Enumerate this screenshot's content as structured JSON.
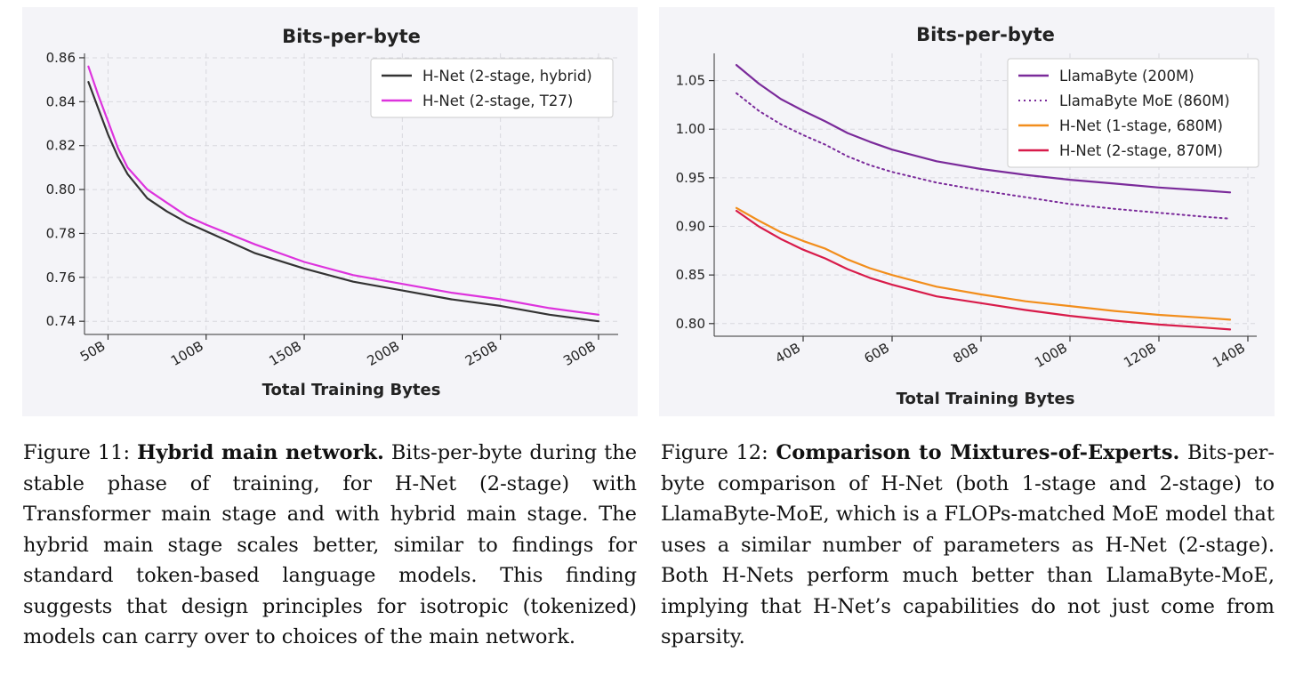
{
  "chart_data": [
    {
      "type": "line",
      "title": "Bits-per-byte",
      "xlabel": "Total Training Bytes",
      "ylabel": "",
      "xlim": [
        38,
        310
      ],
      "ylim": [
        0.734,
        0.862
      ],
      "xticks": [
        50,
        100,
        150,
        200,
        250,
        300
      ],
      "xtick_labels": [
        "50B",
        "100B",
        "150B",
        "200B",
        "250B",
        "300B"
      ],
      "yticks": [
        0.74,
        0.76,
        0.78,
        0.8,
        0.82,
        0.84,
        0.86
      ],
      "ytick_labels": [
        "0.74",
        "0.76",
        "0.78",
        "0.80",
        "0.82",
        "0.84",
        "0.86"
      ],
      "grid": true,
      "legend_position": "top-right",
      "series": [
        {
          "name": "H-Net (2-stage, hybrid)",
          "color": "#333333",
          "dash": "solid",
          "x": [
            40,
            45,
            50,
            55,
            60,
            70,
            80,
            90,
            100,
            125,
            150,
            175,
            200,
            225,
            250,
            275,
            300
          ],
          "y": [
            0.849,
            0.837,
            0.825,
            0.815,
            0.807,
            0.796,
            0.79,
            0.785,
            0.781,
            0.771,
            0.764,
            0.758,
            0.754,
            0.75,
            0.747,
            0.743,
            0.74
          ]
        },
        {
          "name": "H-Net (2-stage, T27)",
          "color": "#dd33dd",
          "dash": "solid",
          "x": [
            40,
            45,
            50,
            55,
            60,
            70,
            80,
            90,
            100,
            125,
            150,
            175,
            200,
            225,
            250,
            275,
            300
          ],
          "y": [
            0.856,
            0.843,
            0.831,
            0.819,
            0.81,
            0.8,
            0.794,
            0.788,
            0.784,
            0.775,
            0.767,
            0.761,
            0.757,
            0.753,
            0.75,
            0.746,
            0.743
          ]
        }
      ]
    },
    {
      "type": "line",
      "title": "Bits-per-byte",
      "xlabel": "Total Training Bytes",
      "ylabel": "",
      "xlim": [
        20,
        142
      ],
      "ylim": [
        0.787,
        1.078
      ],
      "xticks": [
        40,
        60,
        80,
        100,
        120,
        140
      ],
      "xtick_labels": [
        "40B",
        "60B",
        "80B",
        "100B",
        "120B",
        "140B"
      ],
      "yticks": [
        0.8,
        0.85,
        0.9,
        0.95,
        1.0,
        1.05
      ],
      "ytick_labels": [
        "0.80",
        "0.85",
        "0.90",
        "0.95",
        "1.00",
        "1.05"
      ],
      "grid": true,
      "legend_position": "top-right",
      "series": [
        {
          "name": "LlamaByte (200M)",
          "color": "#7a2a9a",
          "dash": "solid",
          "x": [
            25,
            30,
            35,
            40,
            45,
            50,
            55,
            60,
            70,
            80,
            90,
            100,
            110,
            120,
            130,
            136
          ],
          "y": [
            1.066,
            1.047,
            1.031,
            1.019,
            1.008,
            0.996,
            0.987,
            0.979,
            0.967,
            0.959,
            0.953,
            0.948,
            0.944,
            0.94,
            0.937,
            0.935
          ]
        },
        {
          "name": "LlamaByte MoE (860M)",
          "color": "#7a2a9a",
          "dash": "dotted",
          "x": [
            25,
            30,
            35,
            40,
            45,
            50,
            55,
            60,
            70,
            80,
            90,
            100,
            110,
            120,
            130,
            136
          ],
          "y": [
            1.037,
            1.019,
            1.005,
            0.994,
            0.984,
            0.972,
            0.963,
            0.956,
            0.945,
            0.937,
            0.93,
            0.923,
            0.918,
            0.914,
            0.91,
            0.908
          ]
        },
        {
          "name": "H-Net (1-stage, 680M)",
          "color": "#f28e1c",
          "dash": "solid",
          "x": [
            25,
            30,
            35,
            40,
            45,
            50,
            55,
            60,
            70,
            80,
            90,
            100,
            110,
            120,
            130,
            136
          ],
          "y": [
            0.919,
            0.906,
            0.894,
            0.885,
            0.877,
            0.866,
            0.857,
            0.85,
            0.838,
            0.83,
            0.823,
            0.818,
            0.813,
            0.809,
            0.806,
            0.804
          ]
        },
        {
          "name": "H-Net (2-stage, 870M)",
          "color": "#d81b4a",
          "dash": "solid",
          "x": [
            25,
            30,
            35,
            40,
            45,
            50,
            55,
            60,
            70,
            80,
            90,
            100,
            110,
            120,
            130,
            136
          ],
          "y": [
            0.916,
            0.9,
            0.887,
            0.876,
            0.867,
            0.856,
            0.847,
            0.84,
            0.828,
            0.821,
            0.814,
            0.808,
            0.803,
            0.799,
            0.796,
            0.794
          ]
        }
      ]
    }
  ],
  "captions": [
    {
      "label": "Figure 11:",
      "title": "Hybrid main network.",
      "text": "Bits-per-byte during the stable phase of training, for H-Net (2-stage) with Transformer main stage and with hybrid main stage. The hybrid main stage scales better, similar to findings for standard token-based language models. This finding suggests that design principles for isotropic (tokenized) models can carry over to choices of the main network."
    },
    {
      "label": "Figure 12:",
      "title": "Comparison to Mixtures-of-Experts.",
      "text": "Bits-per-byte comparison of H-Net (both 1-stage and 2-stage) to LlamaByte-MoE, which is a FLOPs-matched MoE model that uses a similar number of parameters as H-Net (2-stage). Both H-Nets perform much better than LlamaByte-MoE, implying that H-Net’s capabilities do not just come from sparsity."
    }
  ],
  "colors": {
    "panel_background": "#f4f4f8",
    "grid": "#d8d8de",
    "axis": "#333333"
  }
}
